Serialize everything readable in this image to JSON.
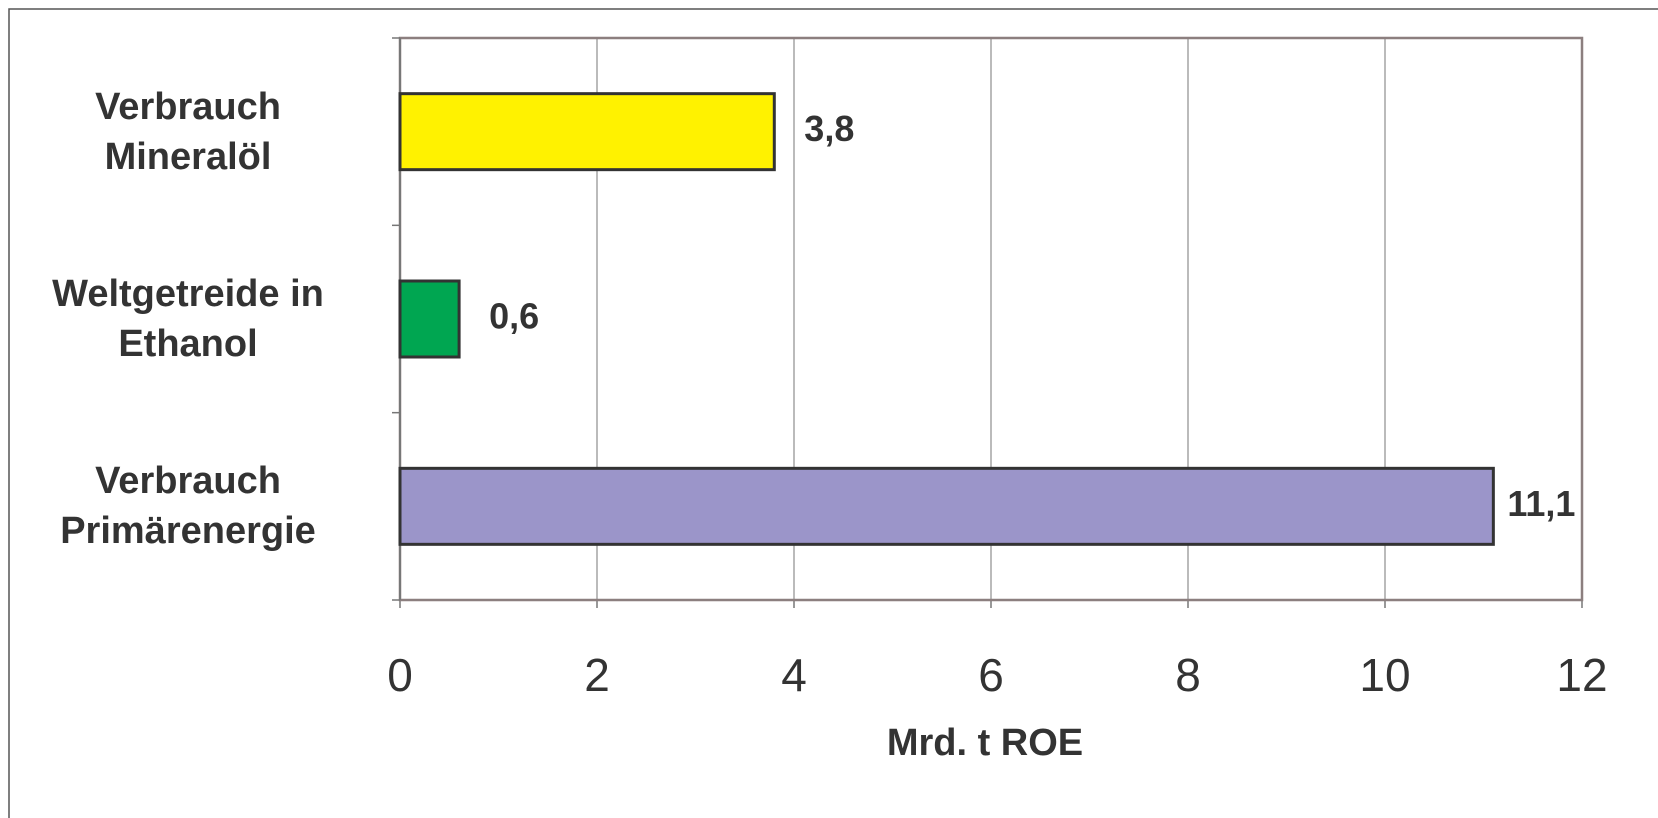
{
  "chart_data": {
    "type": "barh",
    "categories": [
      "Verbrauch Mineralöl",
      "Weltgetreide in Ethanol",
      "Verbrauch Primärenergie"
    ],
    "values": [
      3.8,
      0.6,
      11.1
    ],
    "value_labels": [
      "3,8",
      "0,6",
      "11,1"
    ],
    "colors": [
      "#fff200",
      "#00a651",
      "#9b95c9"
    ],
    "xlabel": "Mrd. t ROE",
    "xlim": [
      0,
      12
    ],
    "xticks": [
      0,
      2,
      4,
      6,
      8,
      10,
      12
    ],
    "grid": true
  }
}
